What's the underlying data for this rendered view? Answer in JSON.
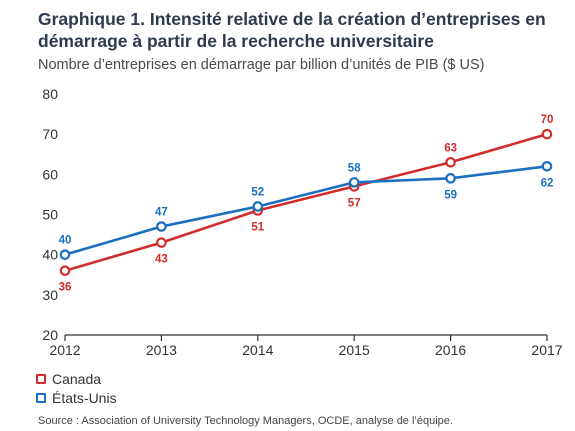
{
  "title": "Graphique 1. Intensité relative de la création d’entreprises en démarrage à partir de la recherche universitaire",
  "subtitle": "Nombre d’entreprises en démarrage par billion d’unités de PIB ($ US)",
  "source": "Source : Association of University Technology Managers, OCDE, analyse de l’équipe.",
  "colors": {
    "canada": "#d12d2d",
    "usa": "#1a6fc0",
    "gridline": "#d9d9d9",
    "axis": "#333333"
  },
  "chart_data": {
    "type": "line",
    "title": "Graphique 1. Intensité relative de la création d’entreprises en démarrage à partir de la recherche universitaire",
    "ylabel": "Nombre d’entreprises en démarrage par billion d’unités de PIB ($ US)",
    "xlabel": "",
    "categories": [
      "2012",
      "2013",
      "2014",
      "2015",
      "2016",
      "2017"
    ],
    "ylim": [
      20,
      80
    ],
    "yticks": [
      "20",
      "30",
      "40",
      "50",
      "60",
      "70",
      "80"
    ],
    "grid": false,
    "legend": "bottom-left",
    "series": [
      {
        "name": "Canada",
        "color": "#d12d2d",
        "values": [
          36,
          43,
          51,
          57,
          63,
          70
        ],
        "labels": [
          "36",
          "43",
          "51",
          "57",
          "63",
          "70"
        ]
      },
      {
        "name": "États-Unis",
        "color": "#1a6fc0",
        "values": [
          40,
          47,
          52,
          58,
          59,
          62
        ],
        "labels": [
          "40",
          "47",
          "52",
          "58",
          "59",
          "62"
        ]
      }
    ]
  }
}
